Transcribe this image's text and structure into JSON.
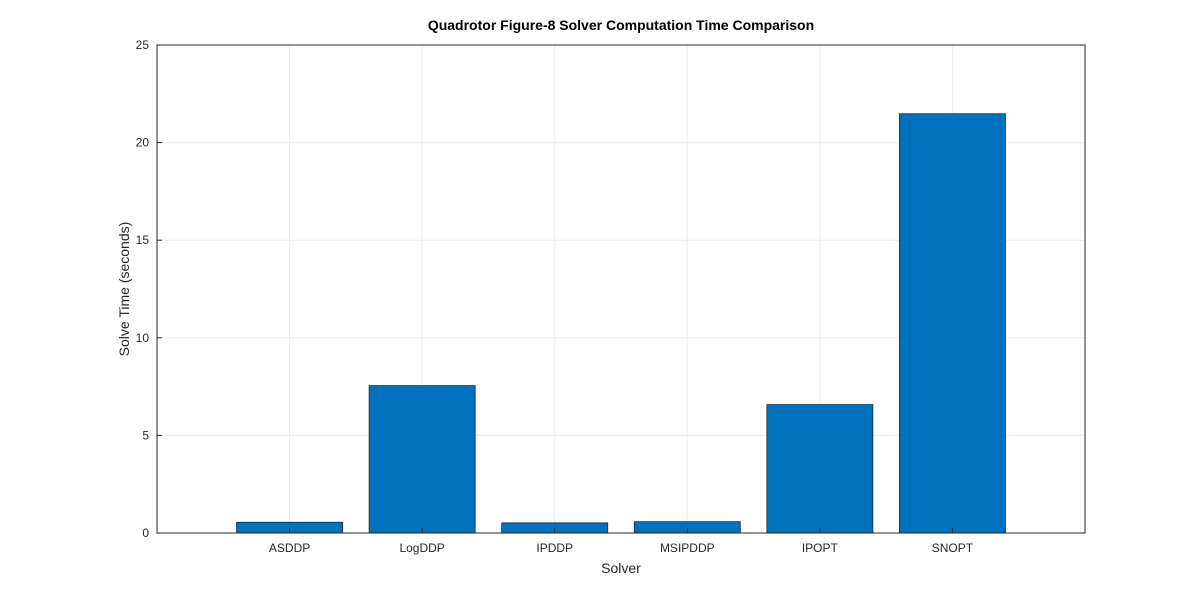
{
  "chart_data": {
    "type": "bar",
    "title": "Quadrotor Figure-8 Solver Computation Time Comparison",
    "xlabel": "Solver",
    "ylabel": "Solve Time (seconds)",
    "categories": [
      "ASDDP",
      "LogDDP",
      "IPDDP",
      "MSIPDDP",
      "IPOPT",
      "SNOPT"
    ],
    "values": [
      0.55,
      7.55,
      0.52,
      0.58,
      6.58,
      21.48
    ],
    "ylim": [
      0,
      25
    ],
    "yticks": [
      0,
      5,
      10,
      15,
      20,
      25
    ],
    "grid": true,
    "bar_color": "#0072bd"
  }
}
